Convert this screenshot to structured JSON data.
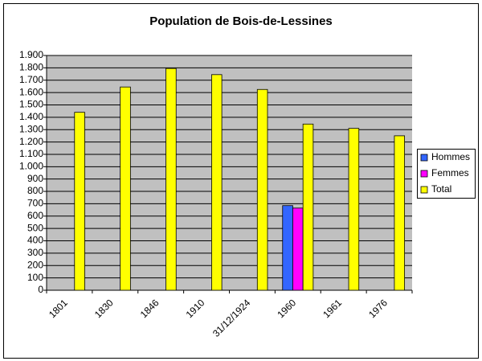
{
  "chart_data": {
    "type": "bar",
    "title": "Population de Bois-de-Lessines",
    "categories": [
      "1801",
      "1830",
      "1846",
      "1910",
      "31/12/1924",
      "1960",
      "1961",
      "1976"
    ],
    "series": [
      {
        "name": "Hommes",
        "color": "#3366ff",
        "values": [
          null,
          null,
          null,
          null,
          null,
          685,
          null,
          null
        ]
      },
      {
        "name": "Femmes",
        "color": "#ff00ff",
        "values": [
          null,
          null,
          null,
          null,
          null,
          665,
          null,
          null
        ]
      },
      {
        "name": "Total",
        "color": "#ffff00",
        "values": [
          1440,
          1645,
          1795,
          1745,
          1625,
          1345,
          1310,
          1250
        ]
      }
    ],
    "ylim": [
      0,
      1900
    ],
    "yticks": [
      0,
      100,
      200,
      300,
      400,
      500,
      600,
      700,
      800,
      900,
      {
        "value": 1000,
        "label": "1.000"
      },
      {
        "value": 1100,
        "label": "1.100"
      },
      {
        "value": 1200,
        "label": "1.200"
      },
      {
        "value": 1300,
        "label": "1.300"
      },
      {
        "value": 1400,
        "label": "1.400"
      },
      {
        "value": 1500,
        "label": "1.500"
      },
      {
        "value": 1600,
        "label": "1.600"
      },
      {
        "value": 1700,
        "label": "1.700"
      },
      {
        "value": 1800,
        "label": "1.800"
      },
      {
        "value": 1900,
        "label": "1.900"
      }
    ],
    "grid": true,
    "legend": "right"
  }
}
